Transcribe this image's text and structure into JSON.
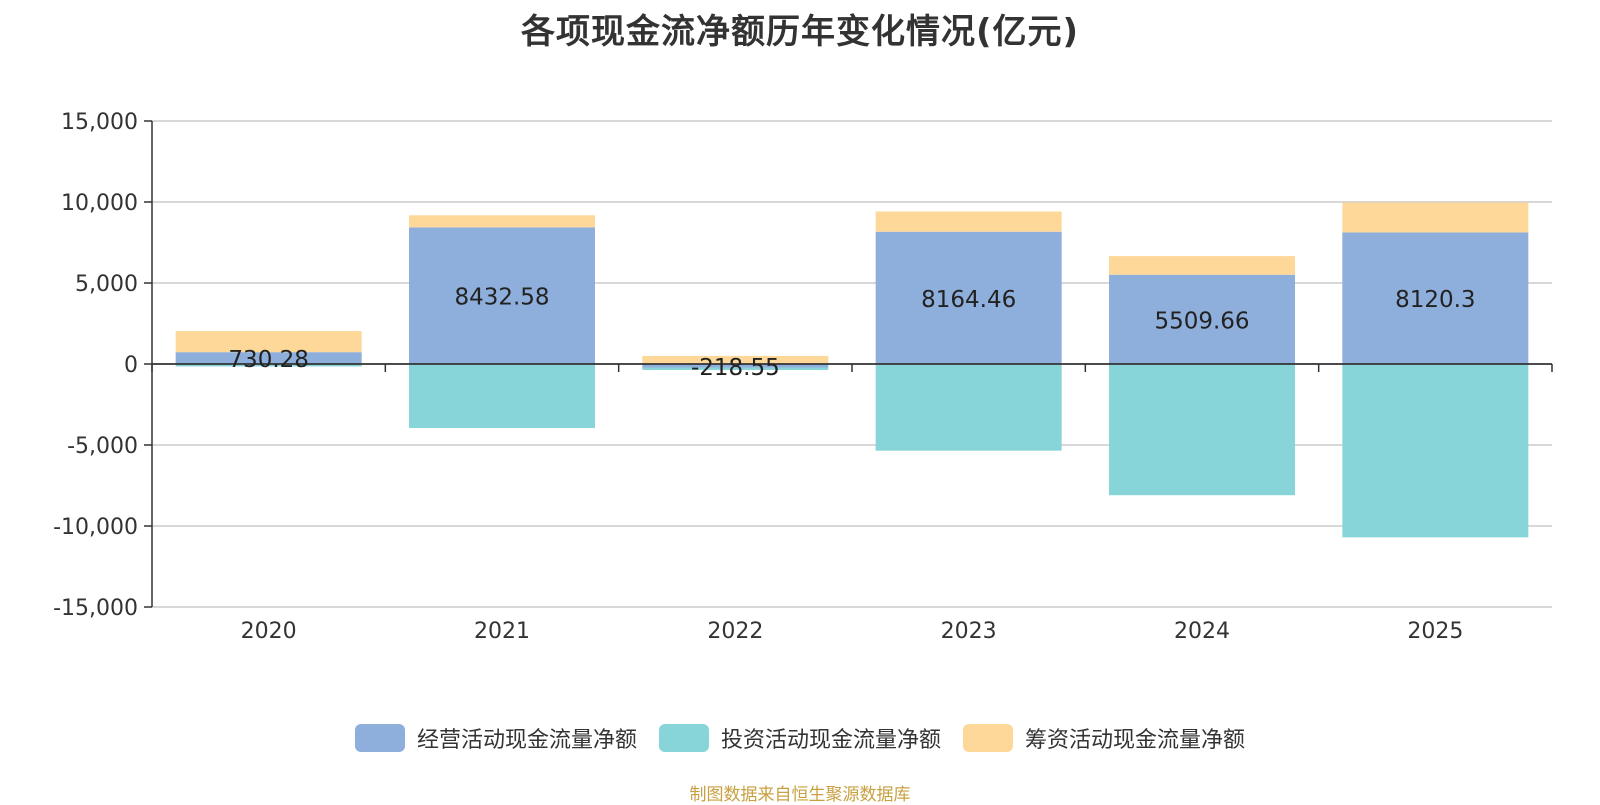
{
  "page": {
    "title": "各项现金流净额历年变化情况(亿元)",
    "source": "制图数据来自恒生聚源数据库"
  },
  "chart_data": {
    "type": "bar",
    "stacked": true,
    "title": "各项现金流净额历年变化情况(亿元)",
    "categories": [
      "2020",
      "2021",
      "2022",
      "2023",
      "2024",
      "2025"
    ],
    "ylim": [
      -15000,
      15000
    ],
    "yticks": [
      15000,
      10000,
      5000,
      0,
      -5000,
      -10000,
      -15000
    ],
    "ytick_labels": [
      "15,000",
      "10,000",
      "5,000",
      "0",
      "-5,000",
      "-10,000",
      "-15,000"
    ],
    "grid": true,
    "legend_position": "bottom",
    "series": [
      {
        "name": "经营活动现金流量净额",
        "color": "#8eaedb",
        "values": [
          730.28,
          8432.58,
          -218.55,
          8164.46,
          5509.66,
          8120.3
        ],
        "labels": [
          "730.28",
          "8432.58",
          "-218.55",
          "8164.46",
          "5509.66",
          "8120.3"
        ]
      },
      {
        "name": "投资活动现金流量净额",
        "color": "#87d5d9",
        "values": [
          -150,
          -3950,
          -150,
          -5350,
          -8100,
          -10700
        ]
      },
      {
        "name": "筹资活动现金流量净额",
        "color": "#fdd899",
        "values": [
          1300,
          750,
          500,
          1250,
          1150,
          1850
        ]
      }
    ]
  }
}
